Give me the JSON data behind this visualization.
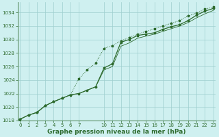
{
  "background_color": "#cff0f0",
  "grid_color": "#9ecece",
  "line_color": "#2d6a2d",
  "text_color": "#2d6a2d",
  "xlabel": "Graphe pression niveau de la mer (hPa)",
  "ylim": [
    1018,
    1035.5
  ],
  "xlim": [
    -0.3,
    23.3
  ],
  "yticks": [
    1018,
    1020,
    1022,
    1024,
    1026,
    1028,
    1030,
    1032,
    1034
  ],
  "xticks": [
    0,
    1,
    2,
    3,
    4,
    5,
    6,
    7,
    10,
    11,
    12,
    13,
    14,
    15,
    16,
    17,
    18,
    19,
    20,
    21,
    22,
    23
  ],
  "x_all": [
    0,
    1,
    2,
    3,
    4,
    5,
    6,
    7,
    8,
    9,
    10,
    11,
    12,
    13,
    14,
    15,
    16,
    17,
    18,
    19,
    20,
    21,
    22,
    23
  ],
  "series_dotted": [
    1018.2,
    1018.8,
    1019.2,
    1020.2,
    1020.8,
    1021.3,
    1021.8,
    1024.2,
    1025.5,
    1026.5,
    1028.7,
    1029.1,
    1029.8,
    1030.3,
    1030.8,
    1031.2,
    1031.6,
    1032.0,
    1032.4,
    1032.8,
    1033.5,
    1033.9,
    1034.5,
    1034.8
  ],
  "series_solid1": [
    1018.2,
    1018.8,
    1019.2,
    1020.2,
    1020.8,
    1021.3,
    1021.8,
    1022.0,
    1022.5,
    1023.0,
    1025.8,
    1026.4,
    1029.6,
    1030.0,
    1030.6,
    1030.8,
    1031.0,
    1031.5,
    1031.9,
    1032.2,
    1032.8,
    1033.6,
    1034.2,
    1034.6
  ],
  "series_solid2": [
    1018.2,
    1018.8,
    1019.2,
    1020.2,
    1020.8,
    1021.3,
    1021.8,
    1022.0,
    1022.5,
    1023.0,
    1025.5,
    1026.0,
    1029.0,
    1029.5,
    1030.2,
    1030.5,
    1030.8,
    1031.2,
    1031.6,
    1032.0,
    1032.5,
    1033.2,
    1033.8,
    1034.3
  ],
  "title_fontsize": 6.5,
  "tick_fontsize": 5.0
}
